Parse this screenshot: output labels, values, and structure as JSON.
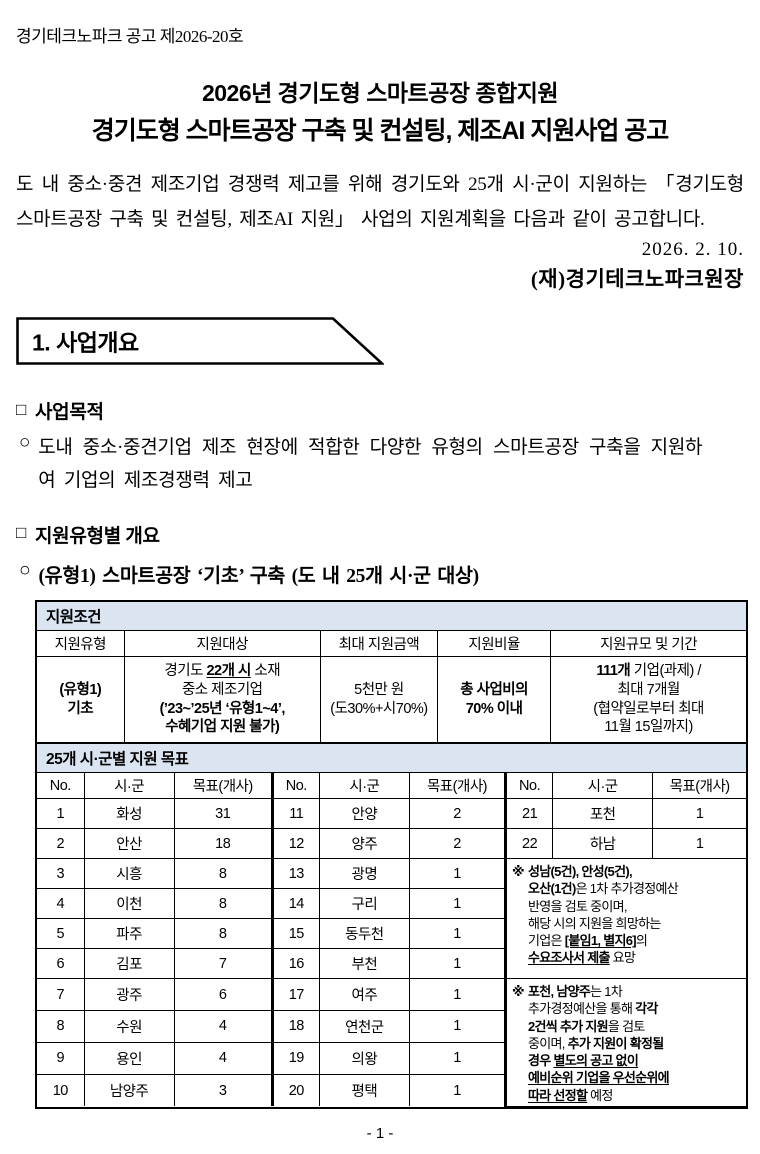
{
  "colors": {
    "table_band_bg": "#dbe5f1"
  },
  "page": {
    "doc_number": "경기테크노파크 공고 제2026-20호",
    "title_line1": "2026년 경기도형 스마트공장 종합지원",
    "title_line2": "경기도형 스마트공장 구축 및 컨설팅, 제조AI 지원사업 공고",
    "intro": "도 내 중소·중견 제조기업 경쟁력 제고를 위해 경기도와 25개 시·군이 지원하는 「경기도형 스마트공장 구축 및 컨설팅, 제조AI 지원」 사업의 지원계획을 다음과 같이 공고합니다.",
    "date": "2026.  2.  10.",
    "issuer": "(재)경기테크노파크원장",
    "footer": "- 1 -"
  },
  "section1": {
    "banner": "1. 사업개요",
    "sq_marker": "□",
    "o_marker": "○",
    "purpose_label": "사업목적",
    "purpose_text": "도내 중소·중견기업 제조 현장에 적합한 다양한 유형의 스마트공장 구축을 지원하여 기업의 제조경쟁력 제고",
    "types_label": "지원유형별 개요",
    "type1_text": "(유형1) 스마트공장  ‘기초’  구축 (도 내 25개 시·군 대상)"
  },
  "conditions_table": {
    "band": "지원조건",
    "headers": [
      "지원유형",
      "지원대상",
      "최대 지원금액",
      "지원비율",
      "지원규모 및 기간"
    ],
    "row": {
      "type": [
        {
          "t": "(유형1)",
          "b": 1
        },
        {
          "br": 1
        },
        {
          "t": "기초",
          "b": 1
        }
      ],
      "target": [
        {
          "t": "경기도 "
        },
        {
          "t": "22개 시",
          "b": 1,
          "u": 1
        },
        {
          "t": " 소재"
        },
        {
          "br": 1
        },
        {
          "t": "중소 제조기업"
        },
        {
          "br": 1
        },
        {
          "t": "(’23~’25년 ‘유형1~4’,",
          "b": 1
        },
        {
          "br": 1
        },
        {
          "t": "수혜기업 지원 불가)",
          "b": 1
        }
      ],
      "amount": [
        {
          "t": "5천만 원"
        },
        {
          "br": 1
        },
        {
          "t": "(도30%+시70%)"
        }
      ],
      "ratio": [
        {
          "t": "총 사업비의",
          "b": 1
        },
        {
          "br": 1
        },
        {
          "t": "70% 이내",
          "b": 1
        }
      ],
      "scale": [
        {
          "t": "111개",
          "b": 1
        },
        {
          "t": " 기업(과제) /"
        },
        {
          "br": 1
        },
        {
          "t": "최대 7개월"
        },
        {
          "br": 1
        },
        {
          "t": "(협약일로부터 최대"
        },
        {
          "br": 1
        },
        {
          "t": "11월 15일까지)"
        }
      ]
    }
  },
  "targets_table": {
    "band": "25개 시·군별 지원 목표",
    "col_headers": [
      "No.",
      "시·군",
      "목표(개사)"
    ],
    "rows": [
      [
        "1",
        "화성",
        "31",
        "11",
        "안양",
        "2",
        "21",
        "포천",
        "1"
      ],
      [
        "2",
        "안산",
        "18",
        "12",
        "양주",
        "2",
        "22",
        "하남",
        "1"
      ],
      [
        "3",
        "시흥",
        "8",
        "13",
        "광명",
        "1"
      ],
      [
        "4",
        "이천",
        "8",
        "14",
        "구리",
        "1"
      ],
      [
        "5",
        "파주",
        "8",
        "15",
        "동두천",
        "1"
      ],
      [
        "6",
        "김포",
        "7",
        "16",
        "부천",
        "1"
      ],
      [
        "7",
        "광주",
        "6",
        "17",
        "여주",
        "1"
      ],
      [
        "8",
        "수원",
        "4",
        "18",
        "연천군",
        "1"
      ],
      [
        "9",
        "용인",
        "4",
        "19",
        "의왕",
        "1"
      ],
      [
        "10",
        "남양주",
        "3",
        "20",
        "평택",
        "1"
      ]
    ],
    "notes": [
      {
        "marker": "※",
        "segments": [
          {
            "t": "성남(5건), 안성(5건),",
            "b": 1
          },
          {
            "br": 1
          },
          {
            "t": "오산(1건)",
            "b": 1
          },
          {
            "t": "은 1차 추가경정예산"
          },
          {
            "br": 1
          },
          {
            "t": "반영을 검토 중이며,"
          },
          {
            "br": 1
          },
          {
            "t": "해당 시의 지원을 희망하는"
          },
          {
            "br": 1
          },
          {
            "t": "기업은 "
          },
          {
            "t": "[붙임1, 별지6]",
            "b": 1,
            "u": 1
          },
          {
            "t": "의"
          },
          {
            "br": 1
          },
          {
            "t": "수요조사서 제출",
            "b": 1,
            "u": 1
          },
          {
            "t": " 요망"
          }
        ]
      },
      {
        "marker": "※",
        "segments": [
          {
            "t": "포천, 남양주",
            "b": 1
          },
          {
            "t": "는 1차"
          },
          {
            "br": 1
          },
          {
            "t": "추가경정예산을 통해 "
          },
          {
            "t": "각각",
            "b": 1
          },
          {
            "br": 1
          },
          {
            "t": "2건씩 추가 지원",
            "b": 1
          },
          {
            "t": "을 검토"
          },
          {
            "br": 1
          },
          {
            "t": "중이며, "
          },
          {
            "t": "추가 지원이 확정될",
            "b": 1
          },
          {
            "br": 1
          },
          {
            "t": "경우 ",
            "b": 1
          },
          {
            "t": "별도의 공고 없이",
            "b": 1,
            "u": 1
          },
          {
            "br": 1
          },
          {
            "t": "예비순위 기업을 우선순위에",
            "b": 1,
            "u": 1
          },
          {
            "br": 1
          },
          {
            "t": "따라 선정할",
            "b": 1,
            "u": 1
          },
          {
            "t": " 예정"
          }
        ]
      }
    ]
  }
}
